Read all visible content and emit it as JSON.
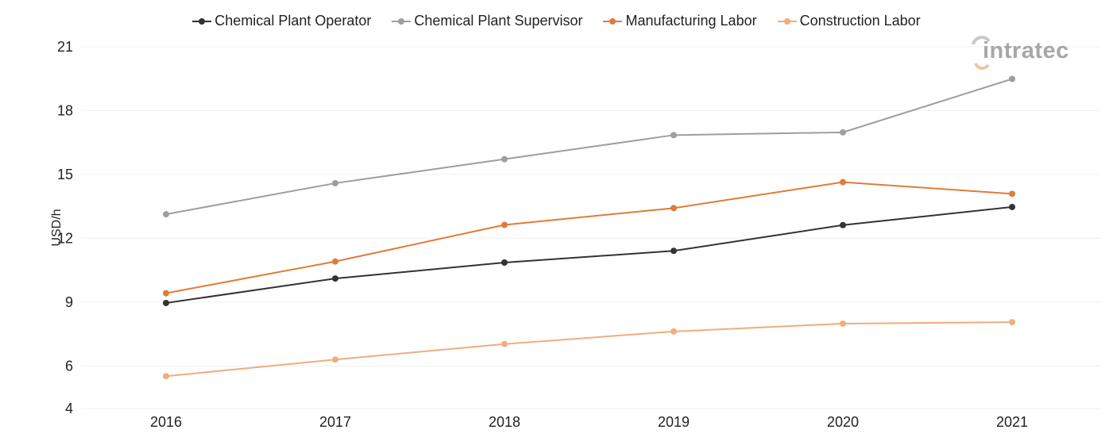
{
  "chart_data": {
    "type": "line",
    "title": "",
    "xlabel": "",
    "ylabel": "USD/h",
    "categories": [
      "2016",
      "2017",
      "2018",
      "2019",
      "2020",
      "2021"
    ],
    "ylim": [
      4,
      21
    ],
    "yticks": [
      4,
      6,
      9,
      12,
      15,
      18,
      21
    ],
    "grid": true,
    "legend_position": "top-center",
    "series": [
      {
        "name": "Chemical Plant Operator",
        "color": "#333333",
        "values": [
          8.96,
          10.11,
          10.86,
          11.41,
          12.62,
          13.47
        ]
      },
      {
        "name": "Chemical Plant Supervisor",
        "color": "#9e9e9e",
        "values": [
          13.13,
          14.59,
          15.72,
          16.85,
          16.98,
          19.49
        ]
      },
      {
        "name": "Manufacturing Labor",
        "color": "#e07b39",
        "values": [
          9.42,
          10.91,
          12.63,
          13.42,
          14.64,
          14.09
        ]
      },
      {
        "name": "Construction Labor",
        "color": "#f0ad7e",
        "values": [
          5.52,
          6.3,
          7.03,
          7.62,
          7.99,
          8.06
        ]
      }
    ]
  },
  "logo": {
    "text": "intratec"
  }
}
